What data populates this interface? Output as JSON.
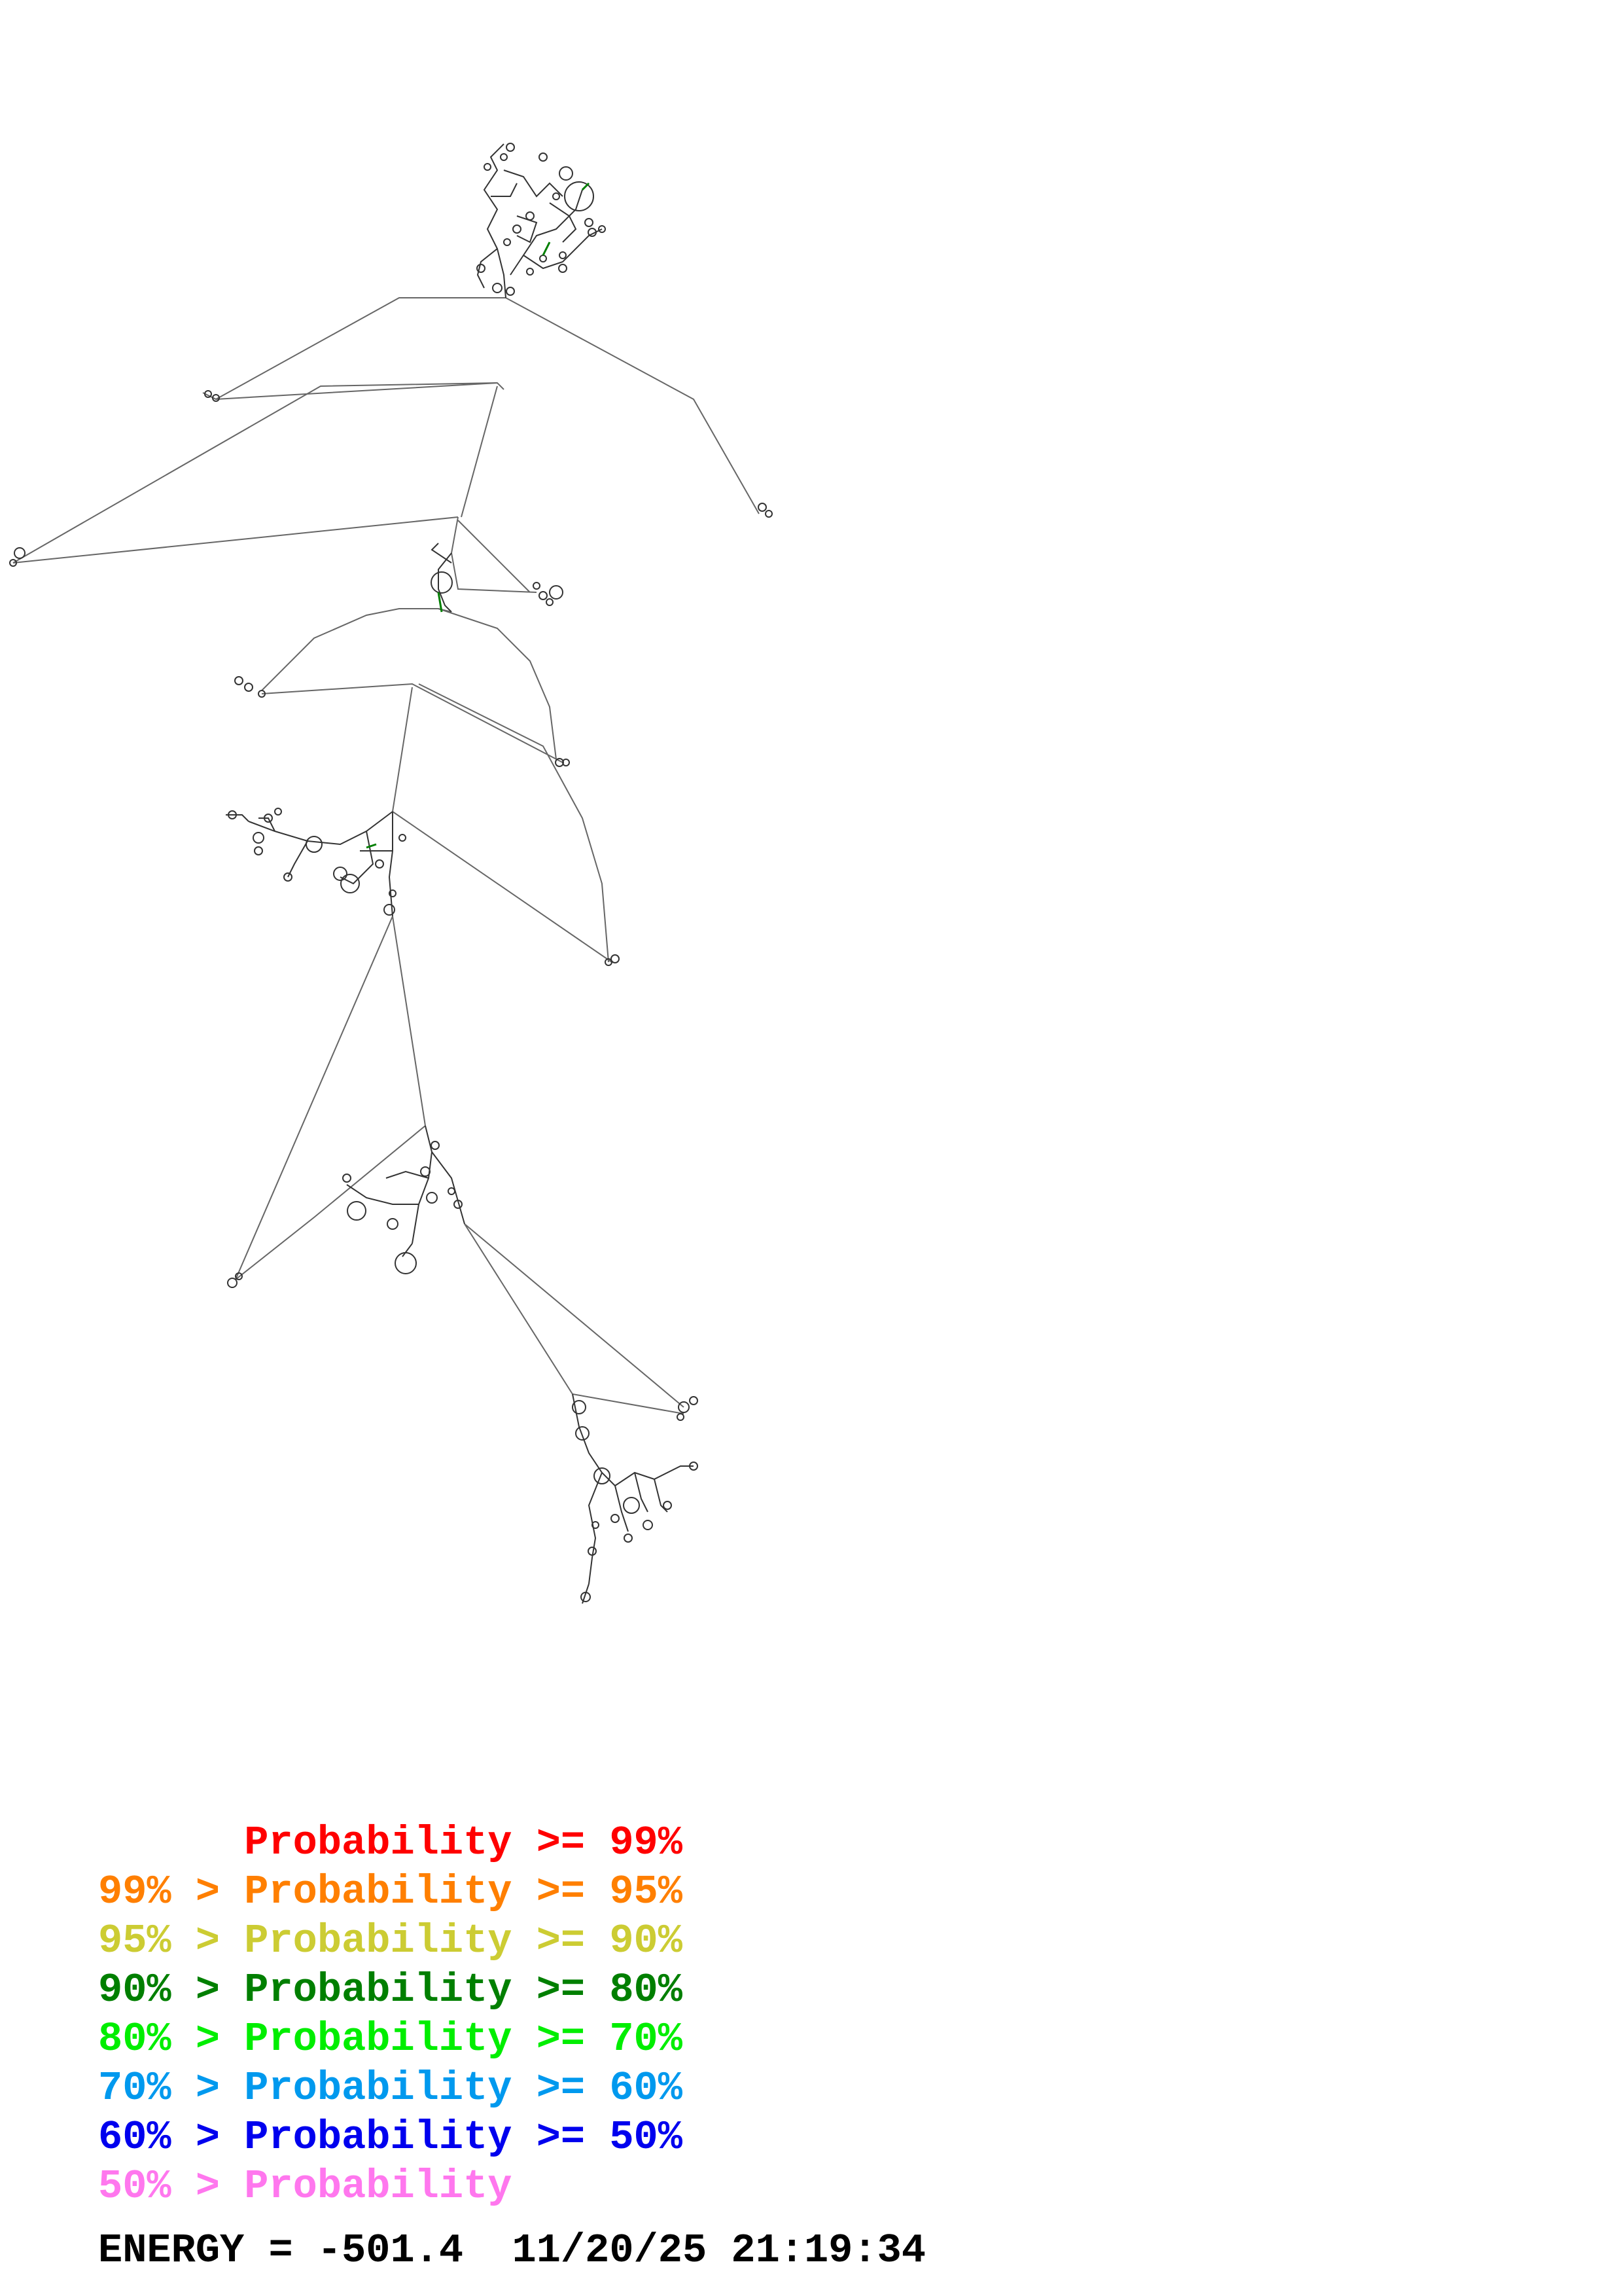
{
  "legend": [
    {
      "text": "      Probability >= 99%",
      "color": "#ff0000"
    },
    {
      "text": "99% > Probability >= 95%",
      "color": "#ff7f00"
    },
    {
      "text": "95% > Probability >= 90%",
      "color": "#cccc33"
    },
    {
      "text": "90% > Probability >= 80%",
      "color": "#007f00"
    },
    {
      "text": "80% > Probability >= 70%",
      "color": "#00ee00"
    },
    {
      "text": "70% > Probability >= 60%",
      "color": "#0099ee"
    },
    {
      "text": "60% > Probability >= 50%",
      "color": "#0000ee"
    },
    {
      "text": "50% > Probability",
      "color": "#ff77ee"
    }
  ],
  "energy": {
    "label": "ENERGY = -501.4  11/20/25 21:19:34"
  },
  "colors": {
    "backbone": "#666666",
    "structure": "#333333",
    "pair_high": "#007f00"
  }
}
